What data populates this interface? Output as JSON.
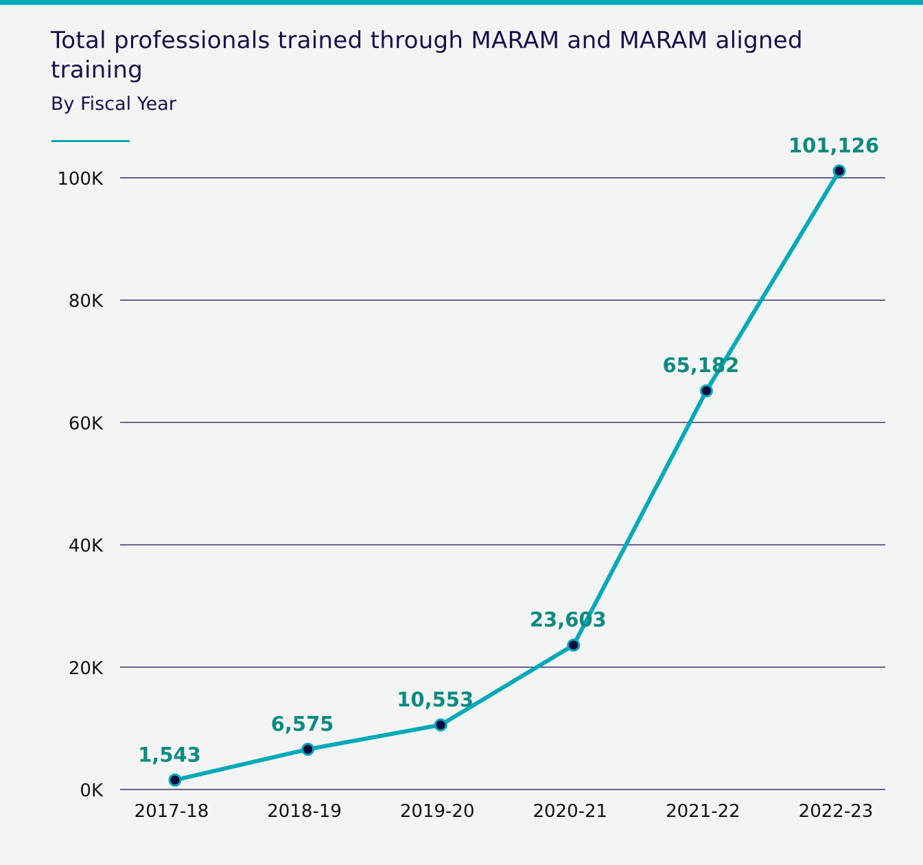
{
  "colors": {
    "accent": "#00a9b7",
    "line": "#00a9b7",
    "marker": "#0b0640",
    "data_label": "#0d8a80",
    "grid": "#3b2e6e",
    "title": "#170f4a"
  },
  "chart_data": {
    "type": "line",
    "title": "Total professionals trained through MARAM and MARAM aligned training",
    "subtitle": "By Fiscal Year",
    "xlabel": "",
    "ylabel": "",
    "categories": [
      "2017-18",
      "2018-19",
      "2019-20",
      "2020-21",
      "2021-22",
      "2022-23"
    ],
    "values": [
      1543,
      6575,
      10553,
      23603,
      65182,
      101126
    ],
    "data_labels": [
      "1,543",
      "6,575",
      "10,553",
      "23,603",
      "65,182",
      "101,126"
    ],
    "ylim": [
      0,
      100000
    ],
    "yticks": [
      0,
      20000,
      40000,
      60000,
      80000,
      100000
    ],
    "ytick_labels": [
      "0K",
      "20K",
      "40K",
      "60K",
      "80K",
      "100K"
    ],
    "grid": true,
    "legend": "none"
  }
}
